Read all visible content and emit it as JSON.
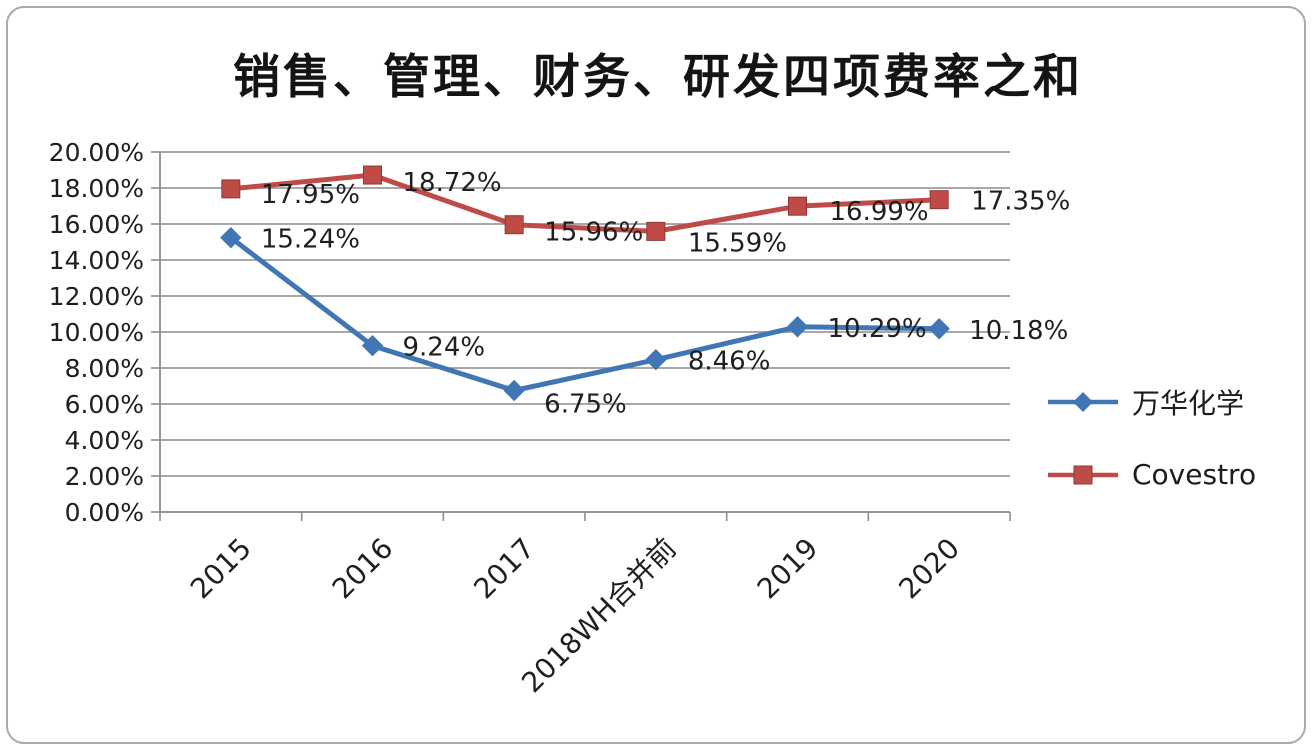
{
  "chart_data": {
    "type": "line",
    "title": "销售、管理、财务、研发四项费率之和",
    "categories": [
      "2015",
      "2016",
      "2017",
      "2018WH合并前",
      "2019",
      "2020"
    ],
    "series": [
      {
        "name": "万华化学",
        "color": "#4176b5",
        "marker": "diamond",
        "values": [
          15.24,
          9.24,
          6.75,
          8.46,
          10.29,
          10.18
        ],
        "labels": [
          "15.24%",
          "9.24%",
          "6.75%",
          "8.46%",
          "10.29%",
          "10.18%"
        ]
      },
      {
        "name": "Covestro",
        "color": "#bf4b47",
        "marker": "square",
        "values": [
          17.95,
          18.72,
          15.96,
          15.59,
          16.99,
          17.35
        ],
        "labels": [
          "17.95%",
          "18.72%",
          "15.96%",
          "15.59%",
          "16.99%",
          "17.35%"
        ]
      }
    ],
    "ylim": [
      0,
      20
    ],
    "ytick_step": 2,
    "ytick_labels": [
      "0.00%",
      "2.00%",
      "4.00%",
      "6.00%",
      "8.00%",
      "10.00%",
      "12.00%",
      "14.00%",
      "16.00%",
      "18.00%",
      "20.00%"
    ],
    "xlabel": "",
    "ylabel": "",
    "grid": true,
    "legend_position": "right",
    "grid_color": "#8c8c8c",
    "text_color": "#1f1f1f"
  }
}
